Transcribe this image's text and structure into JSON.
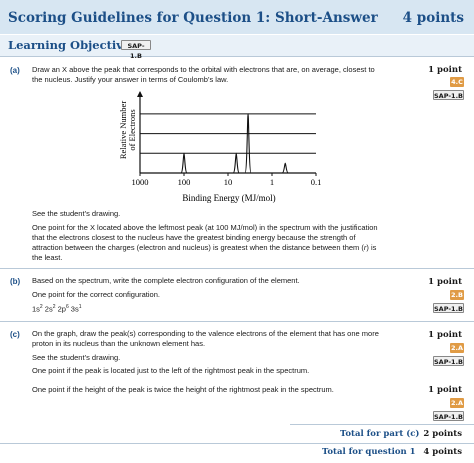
{
  "header": {
    "title": "Scoring Guidelines for Question 1:  Short-Answer",
    "points": "4 points"
  },
  "objectives": {
    "label": "Learning Objectives:",
    "badge": "SAP-1.B"
  },
  "part_a": {
    "letter": "(a)",
    "prompt_line1": "Draw an X above the peak that corresponds to the orbital with electrons that are, on average, closest to",
    "prompt_line2": "the nucleus. Justify your answer in terms of Coulomb’s law.",
    "points": "1 point",
    "skill_badge": "4.C",
    "sap_badge": "SAP-1.B",
    "see_drawing": "See the student’s drawing.",
    "guideline_line1": "One point for the X located above the leftmost peak (at 100 MJ/mol) in the spectrum with the justification",
    "guideline_line2": "that the electrons closest to the nucleus have the greatest binding energy because the strength of",
    "guideline_line3_before": "attraction between the charges (electron and nucleus) is greatest when the distance between them (",
    "guideline_line3_r": "r",
    "guideline_line3_after": ") is",
    "guideline_line4": "the least."
  },
  "part_b": {
    "letter": "(b)",
    "prompt": "Based on the spectrum, write the complete electron configuration of the element.",
    "points": "1 point",
    "skill_badge": "2.B",
    "sap_badge": "SAP-1.B",
    "guideline": "One point for the correct configuration.",
    "config_1s": "1s",
    "config_1s_exp": "2",
    "config_2s": " 2s",
    "config_2s_exp": "2",
    "config_2p": " 2p",
    "config_2p_exp": "6",
    "config_3s": " 3s",
    "config_3s_exp": "1"
  },
  "part_c": {
    "letter": "(c)",
    "prompt_line1": "On the graph, draw the peak(s) corresponding to the valence electrons of the element that has one more",
    "prompt_line2": "proton in its nucleus than the unknown element has.",
    "points": "1 point",
    "skill_badge": "2.A",
    "sap_badge": "SAP-1.B",
    "see_drawing": "See the student’s drawing.",
    "guideline1": "One point if the peak is located just to the left of the rightmost peak in the spectrum.",
    "guideline2": "One point if the height of the peak is twice the height of the rightmost peak in the spectrum.",
    "points2": "1 point",
    "skill_badge2": "2.A",
    "sap_badge2": "SAP-1.B"
  },
  "totals": {
    "part_label": "Total for part (c)",
    "part_points": "2 points",
    "question_label": "Total for question 1",
    "question_points": "4 points"
  },
  "chart_data": {
    "type": "line",
    "title": "",
    "xlabel": "Binding Energy (MJ/mol)",
    "ylabel": "Relative Number of Electrons",
    "ylabel_line1": "Relative Number",
    "ylabel_line2": "of Electrons",
    "x_scale": "log",
    "x_reversed": true,
    "xlim": [
      1000,
      0.1
    ],
    "ylim": [
      0,
      3.5
    ],
    "x_ticks": [
      "1000",
      "100",
      "10",
      "1",
      "0.1"
    ],
    "y_gridlines": [
      1,
      2,
      3
    ],
    "grid": true,
    "series": [
      {
        "x": [
          100,
          6.5,
          3.5,
          0.5
        ],
        "y": [
          1,
          1,
          3,
          0.5
        ]
      }
    ]
  }
}
